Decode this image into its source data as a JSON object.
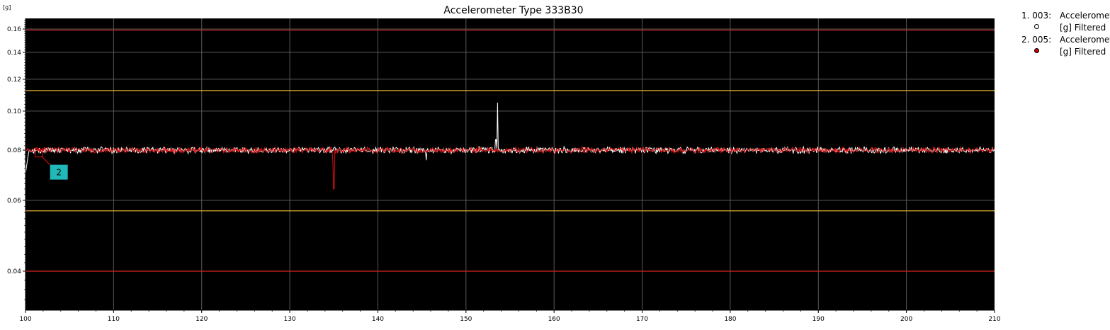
{
  "chart_data": {
    "type": "line",
    "title": "Accelerometer Type 333B30",
    "ylabel": "[g]",
    "xlabel": "",
    "xlim": [
      100,
      210
    ],
    "ylim": [
      0.032,
      0.17
    ],
    "yscale": "log",
    "grid": true,
    "background": "#000000",
    "x_ticks": [
      100,
      110,
      120,
      130,
      140,
      150,
      160,
      170,
      180,
      190,
      200,
      210
    ],
    "x_tick_labels": [
      "100",
      "110",
      "120",
      "130",
      "140",
      "150",
      "160",
      "170",
      "180",
      "190",
      "200",
      "210"
    ],
    "y_ticks": [
      0.04,
      0.06,
      0.08,
      0.1,
      0.12,
      0.14,
      0.16
    ],
    "y_tick_labels": [
      "0.04",
      "0.06",
      "0.08",
      "0.10",
      "0.12",
      "0.14",
      "0.16"
    ],
    "limit_lines": [
      {
        "value": 0.159,
        "color": "#cc2222",
        "kind": "alarm"
      },
      {
        "value": 0.1125,
        "color": "#e0b030",
        "kind": "warning"
      },
      {
        "value": 0.0565,
        "color": "#e0b030",
        "kind": "warning"
      },
      {
        "value": 0.04,
        "color": "#cc2222",
        "kind": "alarm"
      }
    ],
    "series": [
      {
        "legend_index": "1. 003:",
        "legend_name": "Accelerometer",
        "legend_unit": "[g] Filtered",
        "color": "#ffffff",
        "marker_fill": "#ffffff",
        "baseline": 0.08,
        "noise": 0.0012,
        "start_value": 0.07,
        "events": [
          {
            "x": 153.4,
            "value": 0.085
          },
          {
            "x": 153.6,
            "value": 0.105
          },
          {
            "x": 145.5,
            "value": 0.0755
          }
        ]
      },
      {
        "legend_index": "2. 005:",
        "legend_name": "Accelerometer",
        "legend_unit": "[g] Filtered",
        "color": "#dd1111",
        "marker_fill": "#cc0000",
        "baseline": 0.08,
        "noise": 0.0011,
        "events": [
          {
            "x": 135.0,
            "value": 0.064
          },
          {
            "x": 134.9,
            "value": 0.075
          }
        ]
      }
    ],
    "annotations": [
      {
        "label": "2",
        "x": 101.5,
        "value": 0.0785,
        "box_color": "#20b8b8",
        "marker_color": "#dd1111"
      }
    ]
  }
}
